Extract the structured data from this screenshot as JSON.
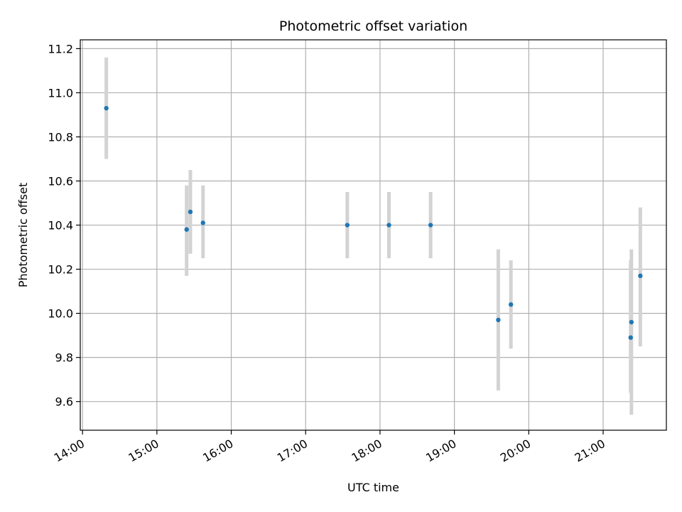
{
  "chart_data": {
    "type": "scatter",
    "title": "Photometric offset variation",
    "xlabel": "UTC time",
    "ylabel": "Photometric offset",
    "x_ticks": [
      "14:00",
      "15:00",
      "16:00",
      "17:00",
      "18:00",
      "19:00",
      "20:00",
      "21:00"
    ],
    "x_tick_hours": [
      14,
      15,
      16,
      17,
      18,
      19,
      20,
      21
    ],
    "xlim_hours": [
      13.97,
      21.85
    ],
    "y_ticks": [
      9.6,
      9.8,
      10.0,
      10.2,
      10.4,
      10.6,
      10.8,
      11.0,
      11.2
    ],
    "ylim": [
      9.47,
      11.24
    ],
    "grid": true,
    "marker_color": "#1f77b4",
    "errorbar_color": "#d3d3d3",
    "points": [
      {
        "x": 14.32,
        "y": 10.93,
        "yerr_low": 10.7,
        "yerr_high": 11.16
      },
      {
        "x": 15.4,
        "y": 10.38,
        "yerr_low": 10.17,
        "yerr_high": 10.58
      },
      {
        "x": 15.45,
        "y": 10.46,
        "yerr_low": 10.27,
        "yerr_high": 10.65
      },
      {
        "x": 15.62,
        "y": 10.41,
        "yerr_low": 10.25,
        "yerr_high": 10.58
      },
      {
        "x": 17.56,
        "y": 10.4,
        "yerr_low": 10.25,
        "yerr_high": 10.55
      },
      {
        "x": 18.12,
        "y": 10.4,
        "yerr_low": 10.25,
        "yerr_high": 10.55
      },
      {
        "x": 18.68,
        "y": 10.4,
        "yerr_low": 10.25,
        "yerr_high": 10.55
      },
      {
        "x": 19.59,
        "y": 9.97,
        "yerr_low": 9.65,
        "yerr_high": 10.29
      },
      {
        "x": 19.76,
        "y": 10.04,
        "yerr_low": 9.84,
        "yerr_high": 10.24
      },
      {
        "x": 21.37,
        "y": 9.89,
        "yerr_low": 9.64,
        "yerr_high": 10.24
      },
      {
        "x": 21.38,
        "y": 9.96,
        "yerr_low": 9.54,
        "yerr_high": 10.29
      },
      {
        "x": 21.5,
        "y": 10.17,
        "yerr_low": 9.85,
        "yerr_high": 10.48
      }
    ]
  }
}
